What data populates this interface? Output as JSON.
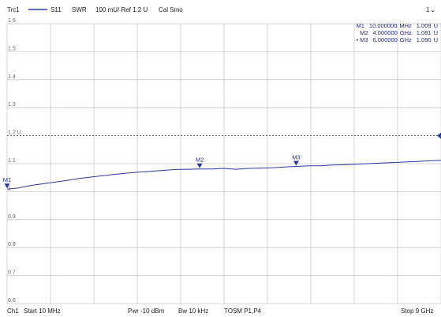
{
  "header": {
    "trace": "Trc1",
    "param": "S11",
    "format": "SWR",
    "scale": "100 mU/ Ref 1.2 U",
    "cal": "Cal Smo",
    "channel_indicator": "1"
  },
  "footer": {
    "channel": "Ch1",
    "start": "Start  10 MHz",
    "power": "Pwr  -10 dBm",
    "bw": "Bw  10 kHz",
    "tosm": "TOSM P1,P4",
    "stop": "Stop  9 GHz"
  },
  "markers": [
    {
      "name": "M1",
      "freq": "10.000000",
      "unit": "MHz",
      "value": "1.009",
      "vunit": "U",
      "active": false
    },
    {
      "name": "M2",
      "freq": "4.000000",
      "unit": "GHz",
      "value": "1.081",
      "vunit": "U",
      "active": false
    },
    {
      "name": "M3",
      "freq": "6.000000",
      "unit": "GHz",
      "value": "1.090",
      "vunit": "U",
      "active": true
    }
  ],
  "colors": {
    "trace": "#2b3a9e",
    "grid": "#c8c8c8",
    "ref_line": "#555555",
    "marker_text": "#1f2c8f"
  },
  "chart_data": {
    "type": "line",
    "title": "",
    "xlabel": "",
    "ylabel": "",
    "xlim": [
      0.01,
      9
    ],
    "ylim": [
      0.6,
      1.6
    ],
    "reference_level": 1.2,
    "reference_label": "1.2 U",
    "ytick_labels": [
      "1.6",
      "1.5",
      "1.4",
      "1.3",
      "1.2 U",
      "1.1",
      "1",
      "0.9",
      "0.8",
      "0.7",
      "0.6"
    ],
    "series": [
      {
        "x": [
          0.01,
          0.25,
          0.5,
          0.75,
          1.0,
          1.25,
          1.5,
          1.75,
          2.0,
          2.25,
          2.5,
          2.75,
          3.0,
          3.25,
          3.5,
          3.75,
          4.0,
          4.25,
          4.5,
          4.75,
          5.0,
          5.25,
          5.5,
          5.75,
          6.0,
          6.25,
          6.5,
          6.75,
          7.0,
          7.25,
          7.5,
          7.75,
          8.0,
          8.25,
          8.5,
          8.75,
          9.0
        ],
        "values": [
          1.009,
          1.013,
          1.022,
          1.028,
          1.034,
          1.04,
          1.047,
          1.052,
          1.057,
          1.062,
          1.066,
          1.07,
          1.073,
          1.076,
          1.079,
          1.08,
          1.081,
          1.081,
          1.083,
          1.08,
          1.083,
          1.084,
          1.085,
          1.088,
          1.09,
          1.092,
          1.092,
          1.095,
          1.096,
          1.098,
          1.1,
          1.102,
          1.104,
          1.106,
          1.108,
          1.11,
          1.112
        ]
      }
    ]
  }
}
